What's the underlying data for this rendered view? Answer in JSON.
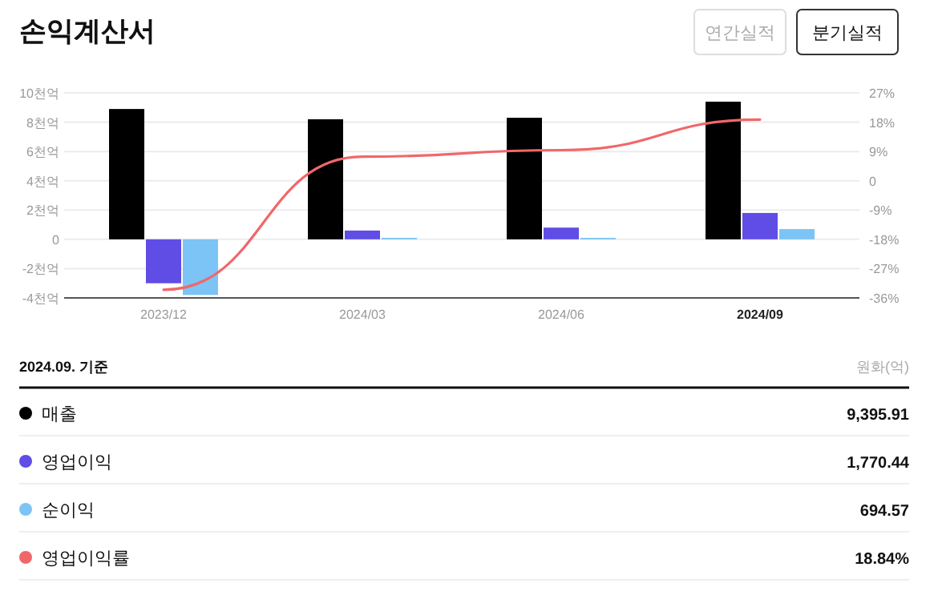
{
  "chart_data": {
    "type": "bar",
    "title": "손익계산서",
    "categories": [
      "2023/12",
      "2024/03",
      "2024/06",
      "2024/09"
    ],
    "series": [
      {
        "name": "매출",
        "color": "#000000",
        "values": [
          8.9,
          8.2,
          8.3,
          9.4
        ]
      },
      {
        "name": "영업이익",
        "color": "#5f4de6",
        "values": [
          -3.0,
          0.6,
          0.8,
          1.8
        ]
      },
      {
        "name": "순이익",
        "color": "#7cc4f5",
        "values": [
          -3.8,
          0.1,
          0.1,
          0.7
        ]
      },
      {
        "name": "영업이익률",
        "color": "#f0676a",
        "type": "line",
        "axis": "y2",
        "values": [
          -33.5,
          7.4,
          9.4,
          18.8
        ]
      }
    ],
    "ylim": [
      -4,
      10
    ],
    "yticks": [
      {
        "value": -4,
        "label": "-4천억"
      },
      {
        "value": -2,
        "label": "-2천억"
      },
      0,
      {
        "value": 2,
        "label": "2천억"
      },
      {
        "value": 4,
        "label": "4천억"
      },
      {
        "value": 6,
        "label": "6천억"
      },
      {
        "value": 8,
        "label": "8천억"
      },
      {
        "value": 10,
        "label": "10천억"
      }
    ],
    "y2lim": [
      -36,
      27
    ],
    "y2ticks": [
      {
        "value": -36,
        "label": "-36%"
      },
      {
        "value": -27,
        "label": "-27%"
      },
      {
        "value": -18,
        "label": "-18%"
      },
      {
        "value": -9,
        "label": "-9%"
      },
      0,
      {
        "value": 9,
        "label": "9%"
      },
      {
        "value": 18,
        "label": "18%"
      },
      {
        "value": 27,
        "label": "27%"
      }
    ],
    "grid": "y",
    "legend": "bottom",
    "annotations": [
      "연간실적",
      "분기실적",
      "2024.09. 기준",
      "원화(억)",
      "9,395.91",
      "1,770.44",
      "694.57",
      "18.84%"
    ]
  }
}
